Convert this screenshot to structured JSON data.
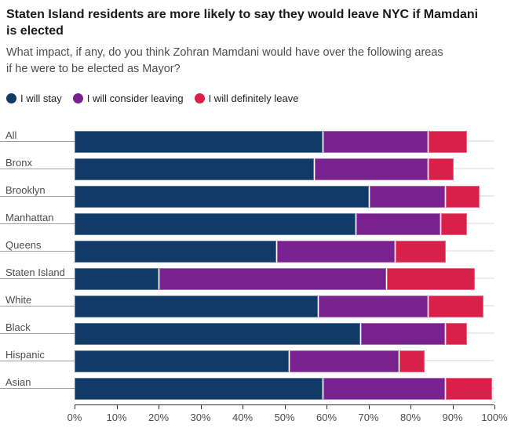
{
  "header": {
    "title": "Staten Island residents are more likely to say they would leave NYC if Mamdani is elected",
    "subtitle": "What impact, if any, do you think Zohran Mamdani would have over the following areas if he were to be elected as Mayor?"
  },
  "chart_data": {
    "type": "bar",
    "orientation": "horizontal",
    "stacked": true,
    "unit": "%",
    "title": "Staten Island residents are more likely to say they would leave NYC if Mamdani is elected",
    "categories": [
      "All",
      "Bronx",
      "Brooklyn",
      "Manhattan",
      "Queens",
      "Staten Island",
      "White",
      "Black",
      "Hispanic",
      "Asian"
    ],
    "series": [
      {
        "name": "I will stay",
        "color": "#0f3b66",
        "values": [
          59,
          57,
          70,
          67,
          48,
          20,
          58,
          68,
          51,
          59
        ]
      },
      {
        "name": "I will consider leaving",
        "color": "#7a2190",
        "values": [
          25,
          27,
          18,
          20,
          28,
          54,
          26,
          20,
          26,
          29
        ]
      },
      {
        "name": "I will definitely leave",
        "color": "#d92048",
        "values": [
          9,
          6,
          8,
          6,
          12,
          21,
          13,
          5,
          6,
          11
        ]
      }
    ],
    "x_ticks": [
      "0%",
      "10%",
      "20%",
      "30%",
      "40%",
      "50%",
      "60%",
      "70%",
      "80%",
      "90%",
      "100%"
    ],
    "xlim": [
      0,
      100
    ],
    "grid": "horizontal-row-lines",
    "legend_position": "top"
  }
}
